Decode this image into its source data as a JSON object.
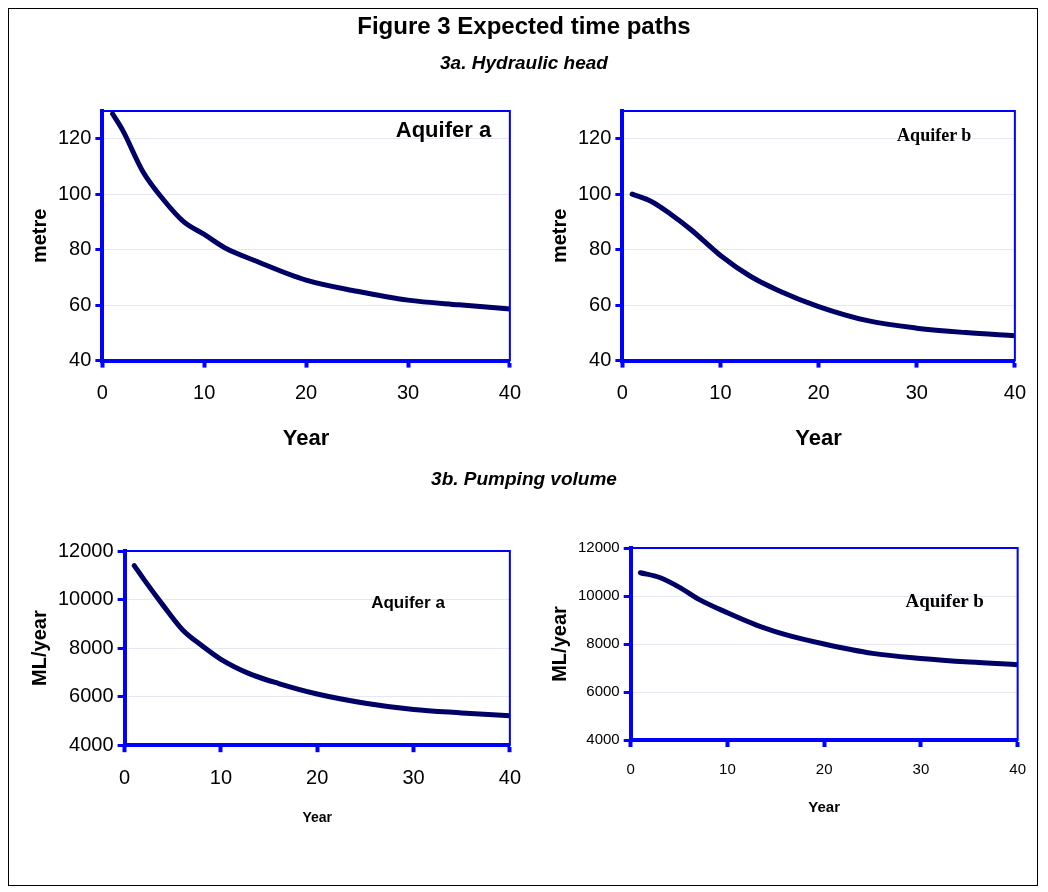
{
  "chart_data": [
    {
      "type": "line",
      "title": "Figure 3 Expected time paths",
      "subtitle": "3a. Hydraulic head",
      "xlabel": "Year",
      "ylabel": "metre",
      "annotations": [
        "Aquifer a"
      ],
      "x": [
        1,
        2,
        4,
        6,
        8,
        10,
        12,
        15,
        20,
        25,
        30,
        35,
        40
      ],
      "series": [
        {
          "color": "#000066",
          "values": [
            129,
            123,
            108,
            98,
            90,
            85.5,
            80.7,
            76,
            69,
            65,
            61.8,
            60.1,
            58.6
          ]
        }
      ],
      "xlim": [
        0,
        40
      ],
      "xticks": [
        0,
        10,
        20,
        30,
        40
      ],
      "ylim": [
        40,
        130
      ],
      "yticks": [
        40,
        60,
        80,
        100,
        120
      ],
      "grid": "y",
      "marker": "none",
      "line_style": "solid",
      "legend": false
    },
    {
      "type": "line",
      "xlabel": "Year",
      "ylabel": "metre",
      "annotations": [
        "Aquifer b"
      ],
      "x": [
        1,
        3,
        5,
        7,
        10,
        13,
        16,
        20,
        25,
        30,
        35,
        40
      ],
      "series": [
        {
          "color": "#000066",
          "values": [
            100,
            97.3,
            92.6,
            87.2,
            77.9,
            70.5,
            65.1,
            59.5,
            54.4,
            51.7,
            50.1,
            49
          ]
        }
      ],
      "xlim": [
        0,
        40
      ],
      "xticks": [
        0,
        10,
        20,
        30,
        40
      ],
      "ylim": [
        40,
        130
      ],
      "yticks": [
        40,
        60,
        80,
        100,
        120
      ],
      "grid": "y",
      "marker": "none",
      "line_style": "solid",
      "legend": false
    },
    {
      "type": "line",
      "subtitle": "3b. Pumping volume",
      "xlabel": "Year",
      "ylabel": "ML/year",
      "annotations": [
        "Aquifer a"
      ],
      "x": [
        1,
        2,
        4,
        6,
        8,
        10,
        13,
        16,
        20,
        25,
        30,
        35,
        40
      ],
      "series": [
        {
          "color": "#000066",
          "values": [
            11400,
            10830,
            9760,
            8760,
            8110,
            7540,
            6940,
            6540,
            6110,
            5730,
            5470,
            5330,
            5210
          ]
        }
      ],
      "xlim": [
        0,
        40
      ],
      "xticks": [
        0,
        10,
        20,
        30,
        40
      ],
      "ylim": [
        4000,
        12000
      ],
      "yticks": [
        4000,
        6000,
        8000,
        10000,
        12000
      ],
      "grid": "y",
      "marker": "none",
      "line_style": "solid",
      "legend": false
    },
    {
      "type": "line",
      "xlabel": "Year",
      "ylabel": "ML/year",
      "annotations": [
        "Aquifer b"
      ],
      "x": [
        1,
        3,
        5,
        7,
        10,
        13,
        16,
        20,
        25,
        30,
        35,
        40
      ],
      "series": [
        {
          "color": "#000066",
          "values": [
            10970,
            10770,
            10370,
            9870,
            9300,
            8790,
            8390,
            8000,
            7610,
            7400,
            7250,
            7140
          ]
        }
      ],
      "xlim": [
        0,
        40
      ],
      "xticks": [
        0,
        10,
        20,
        30,
        40
      ],
      "ylim": [
        4000,
        12000
      ],
      "yticks": [
        4000,
        6000,
        8000,
        10000,
        12000
      ],
      "grid": "y",
      "marker": "none",
      "line_style": "solid",
      "legend": false
    }
  ]
}
